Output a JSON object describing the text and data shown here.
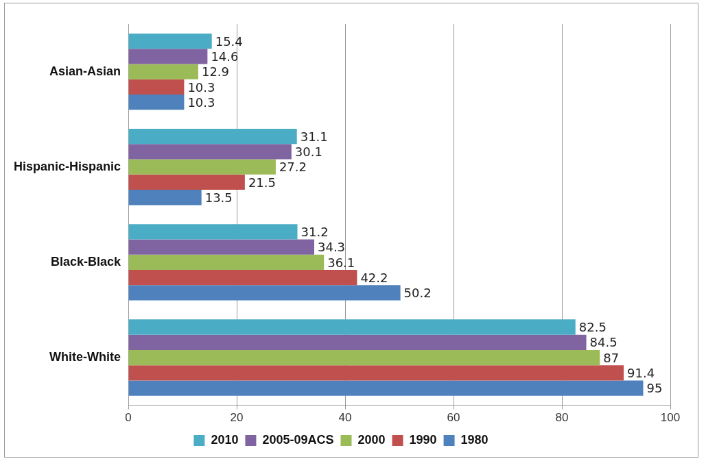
{
  "chart_data": {
    "type": "bar",
    "orientation": "horizontal",
    "categories": [
      "Asian-Asian",
      "Hispanic-Hispanic",
      "Black-Black",
      "White-White"
    ],
    "series": [
      {
        "name": "2010",
        "color": "#4bacc6",
        "values": [
          15.4,
          31.1,
          31.2,
          82.5
        ]
      },
      {
        "name": "2005-09ACS",
        "color": "#8064a2",
        "values": [
          14.6,
          30.1,
          34.3,
          84.5
        ]
      },
      {
        "name": "2000",
        "color": "#9bbb59",
        "values": [
          12.9,
          27.2,
          36.1,
          87
        ]
      },
      {
        "name": "1990",
        "color": "#c0504d",
        "values": [
          10.3,
          21.5,
          42.2,
          91.4
        ]
      },
      {
        "name": "1980",
        "color": "#4f81bd",
        "values": [
          10.3,
          13.5,
          50.2,
          95
        ]
      }
    ],
    "xlim": [
      0,
      100
    ],
    "xticks": [
      0,
      20,
      40,
      60,
      80,
      100
    ],
    "grid": "x",
    "legend": "bottom",
    "data_labels": true
  }
}
